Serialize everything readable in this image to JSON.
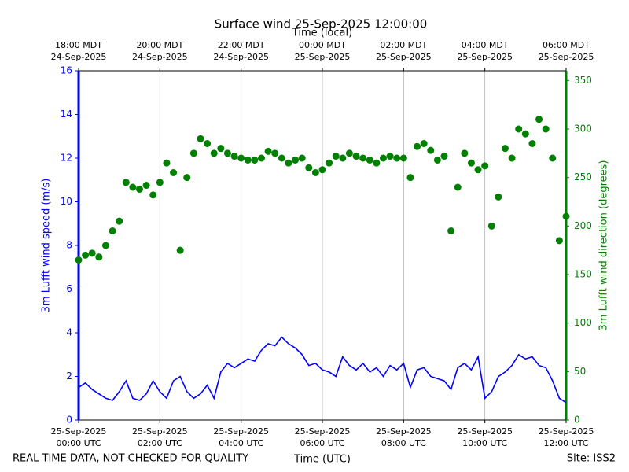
{
  "chart_data": {
    "type": "line",
    "title": "Surface wind 25-Sep-2025 12:00:00",
    "x2_label": "Time (local)",
    "x_label": "Time (UTC)",
    "y_label": "3m Lufft wind speed (m/s)",
    "y2_label": "3m Lufft wind direction (degrees)",
    "annotations": [
      "REAL TIME DATA, NOT CHECKED FOR QUALITY",
      "Site: ISS2"
    ],
    "grid": true,
    "xlim": [
      "2025-09-25 00:00",
      "2025-09-25 12:00"
    ],
    "xticks": [
      {
        "value": "2025-09-25 00:00",
        "label": [
          "25-Sep-2025",
          "00:00 UTC"
        ]
      },
      {
        "value": "2025-09-25 02:00",
        "label": [
          "25-Sep-2025",
          "02:00 UTC"
        ]
      },
      {
        "value": "2025-09-25 04:00",
        "label": [
          "25-Sep-2025",
          "04:00 UTC"
        ]
      },
      {
        "value": "2025-09-25 06:00",
        "label": [
          "25-Sep-2025",
          "06:00 UTC"
        ]
      },
      {
        "value": "2025-09-25 08:00",
        "label": [
          "25-Sep-2025",
          "08:00 UTC"
        ]
      },
      {
        "value": "2025-09-25 10:00",
        "label": [
          "25-Sep-2025",
          "10:00 UTC"
        ]
      },
      {
        "value": "2025-09-25 12:00",
        "label": [
          "25-Sep-2025",
          "12:00 UTC"
        ]
      }
    ],
    "x2ticks": [
      {
        "value": "2025-09-25 00:00",
        "label": [
          "18:00 MDT",
          "24-Sep-2025"
        ]
      },
      {
        "value": "2025-09-25 02:00",
        "label": [
          "20:00 MDT",
          "24-Sep-2025"
        ]
      },
      {
        "value": "2025-09-25 04:00",
        "label": [
          "22:00 MDT",
          "24-Sep-2025"
        ]
      },
      {
        "value": "2025-09-25 06:00",
        "label": [
          "00:00 MDT",
          "25-Sep-2025"
        ]
      },
      {
        "value": "2025-09-25 08:00",
        "label": [
          "02:00 MDT",
          "25-Sep-2025"
        ]
      },
      {
        "value": "2025-09-25 10:00",
        "label": [
          "04:00 MDT",
          "25-Sep-2025"
        ]
      },
      {
        "value": "2025-09-25 12:00",
        "label": [
          "06:00 MDT",
          "25-Sep-2025"
        ]
      }
    ],
    "ylim": [
      0,
      16
    ],
    "yticks": [
      0,
      2,
      4,
      6,
      8,
      10,
      12,
      14,
      16
    ],
    "y2lim": [
      0,
      360
    ],
    "y2ticks": [
      0,
      50,
      100,
      150,
      200,
      250,
      300,
      350
    ],
    "y_color": "#0000ff",
    "y2_color": "#008000",
    "x": [
      "2025-09-25 00:00",
      "2025-09-25 00:10",
      "2025-09-25 00:20",
      "2025-09-25 00:30",
      "2025-09-25 00:40",
      "2025-09-25 00:50",
      "2025-09-25 01:00",
      "2025-09-25 01:10",
      "2025-09-25 01:20",
      "2025-09-25 01:30",
      "2025-09-25 01:40",
      "2025-09-25 01:50",
      "2025-09-25 02:00",
      "2025-09-25 02:10",
      "2025-09-25 02:20",
      "2025-09-25 02:30",
      "2025-09-25 02:40",
      "2025-09-25 02:50",
      "2025-09-25 03:00",
      "2025-09-25 03:10",
      "2025-09-25 03:20",
      "2025-09-25 03:30",
      "2025-09-25 03:40",
      "2025-09-25 03:50",
      "2025-09-25 04:00",
      "2025-09-25 04:10",
      "2025-09-25 04:20",
      "2025-09-25 04:30",
      "2025-09-25 04:40",
      "2025-09-25 04:50",
      "2025-09-25 05:00",
      "2025-09-25 05:10",
      "2025-09-25 05:20",
      "2025-09-25 05:30",
      "2025-09-25 05:40",
      "2025-09-25 05:50",
      "2025-09-25 06:00",
      "2025-09-25 06:10",
      "2025-09-25 06:20",
      "2025-09-25 06:30",
      "2025-09-25 06:40",
      "2025-09-25 06:50",
      "2025-09-25 07:00",
      "2025-09-25 07:10",
      "2025-09-25 07:20",
      "2025-09-25 07:30",
      "2025-09-25 07:40",
      "2025-09-25 07:50",
      "2025-09-25 08:00",
      "2025-09-25 08:10",
      "2025-09-25 08:20",
      "2025-09-25 08:30",
      "2025-09-25 08:40",
      "2025-09-25 08:50",
      "2025-09-25 09:00",
      "2025-09-25 09:10",
      "2025-09-25 09:20",
      "2025-09-25 09:30",
      "2025-09-25 09:40",
      "2025-09-25 09:50",
      "2025-09-25 10:00",
      "2025-09-25 10:10",
      "2025-09-25 10:20",
      "2025-09-25 10:30",
      "2025-09-25 10:40",
      "2025-09-25 10:50",
      "2025-09-25 11:00",
      "2025-09-25 11:10",
      "2025-09-25 11:20",
      "2025-09-25 11:30",
      "2025-09-25 11:40",
      "2025-09-25 11:50",
      "2025-09-25 12:00"
    ],
    "series": [
      {
        "color": "#0000ff",
        "style": "line",
        "axis": "y",
        "values": [
          1.5,
          1.7,
          1.4,
          1.2,
          1.0,
          0.9,
          1.3,
          1.8,
          1.0,
          0.9,
          1.2,
          1.8,
          1.3,
          1.0,
          1.8,
          2.0,
          1.3,
          1.0,
          1.2,
          1.6,
          1.0,
          2.2,
          2.6,
          2.4,
          2.6,
          2.8,
          2.7,
          3.2,
          3.5,
          3.4,
          3.8,
          3.5,
          3.3,
          3.0,
          2.5,
          2.6,
          2.3,
          2.2,
          2.0,
          2.9,
          2.5,
          2.3,
          2.6,
          2.2,
          2.4,
          2.0,
          2.5,
          2.3,
          2.6,
          1.5,
          2.3,
          2.4,
          2.0,
          1.9,
          1.8,
          1.4,
          2.4,
          2.6,
          2.3,
          2.9,
          1.0,
          1.3,
          2.0,
          2.2,
          2.5,
          3.0,
          2.8,
          2.9,
          2.5,
          2.4,
          1.8,
          1.0,
          0.8
        ]
      },
      {
        "color": "#008000",
        "style": "markers",
        "axis": "y2",
        "values": [
          165,
          170,
          172,
          168,
          180,
          195,
          205,
          245,
          240,
          238,
          242,
          232,
          245,
          265,
          255,
          175,
          250,
          275,
          290,
          285,
          275,
          280,
          275,
          272,
          270,
          268,
          268,
          270,
          277,
          275,
          270,
          265,
          268,
          270,
          260,
          255,
          258,
          265,
          272,
          270,
          275,
          272,
          270,
          268,
          265,
          270,
          272,
          270,
          270,
          250,
          282,
          285,
          278,
          268,
          272,
          195,
          240,
          275,
          265,
          258,
          262,
          200,
          230,
          280,
          270,
          300,
          295,
          285,
          310,
          300,
          270,
          185,
          210
        ]
      }
    ]
  }
}
